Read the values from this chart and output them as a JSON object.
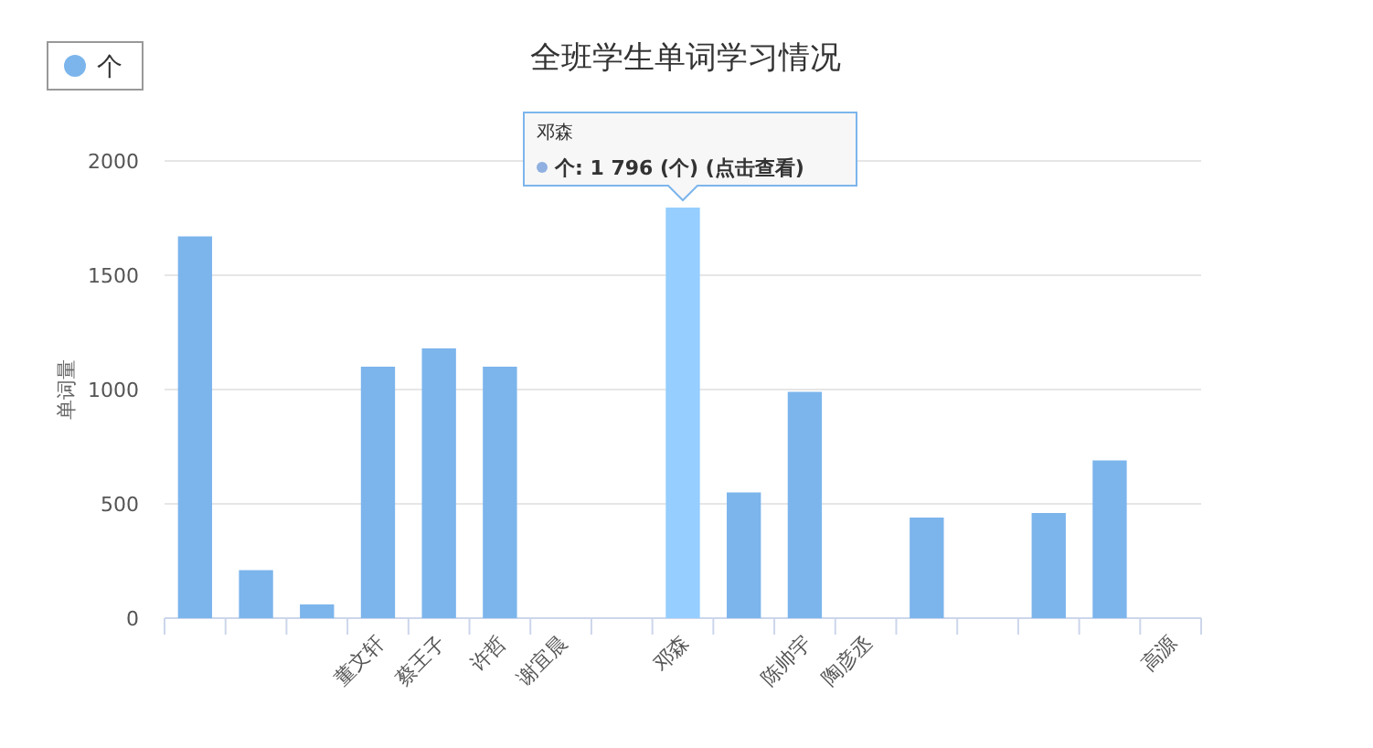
{
  "chart_data": {
    "type": "bar",
    "title": "全班学生单词学习情况",
    "ylabel": "单词量",
    "categories": [
      null,
      null,
      null,
      "董文轩",
      "蔡王子",
      "许哲",
      "谢宜晨",
      null,
      "邓森",
      null,
      "陈帅宇",
      "陶彦丞",
      null,
      null,
      null,
      null,
      "高源"
    ],
    "series": [
      {
        "name": "个",
        "color": "#7cb5ec",
        "colors": [
          "#7cb5ec",
          "#7cb5ec",
          "#7cb5ec",
          "#7cb5ec",
          "#7cb5ec",
          "#7cb5ec",
          "#7cb5ec",
          "#7cb5ec",
          "#95ceff",
          "#7cb5ec",
          "#7cb5ec",
          "#7cb5ec",
          "#7cb5ec",
          "#7cb5ec",
          "#7cb5ec",
          "#7cb5ec",
          "#7cb5ec"
        ],
        "values": [
          1670,
          210,
          60,
          1100,
          1180,
          1100,
          0,
          0,
          1796,
          550,
          990,
          0,
          440,
          0,
          460,
          690,
          0
        ]
      }
    ],
    "ylim": [
      0,
      2000
    ],
    "yticks": [
      0,
      500,
      1000,
      1500,
      2000
    ],
    "grid": "y",
    "legend": "top left",
    "annotations": [
      "邓森",
      "个: 1 796 (个) (点击查看)"
    ]
  }
}
